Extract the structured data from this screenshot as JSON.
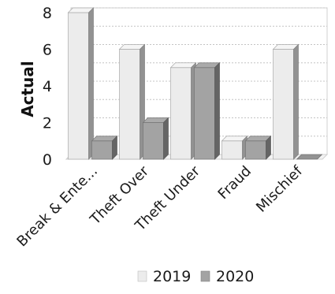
{
  "chart_data": {
    "type": "bar",
    "title": "",
    "xlabel": "",
    "ylabel": "Actual",
    "categories": [
      "Break & Ente...",
      "Theft Over",
      "Theft Under",
      "Fraud",
      "Mischief"
    ],
    "series": [
      {
        "name": "2019",
        "values": [
          8,
          6,
          5,
          1,
          6
        ],
        "color": "#ececec"
      },
      {
        "name": "2020",
        "values": [
          1,
          2,
          5,
          1,
          0
        ],
        "color": "#a3a3a3"
      }
    ],
    "ylim": [
      0,
      8
    ],
    "yticks": [
      0,
      2,
      4,
      6,
      8
    ],
    "grid": true,
    "legend_position": "bottom",
    "style": "3d-column"
  }
}
